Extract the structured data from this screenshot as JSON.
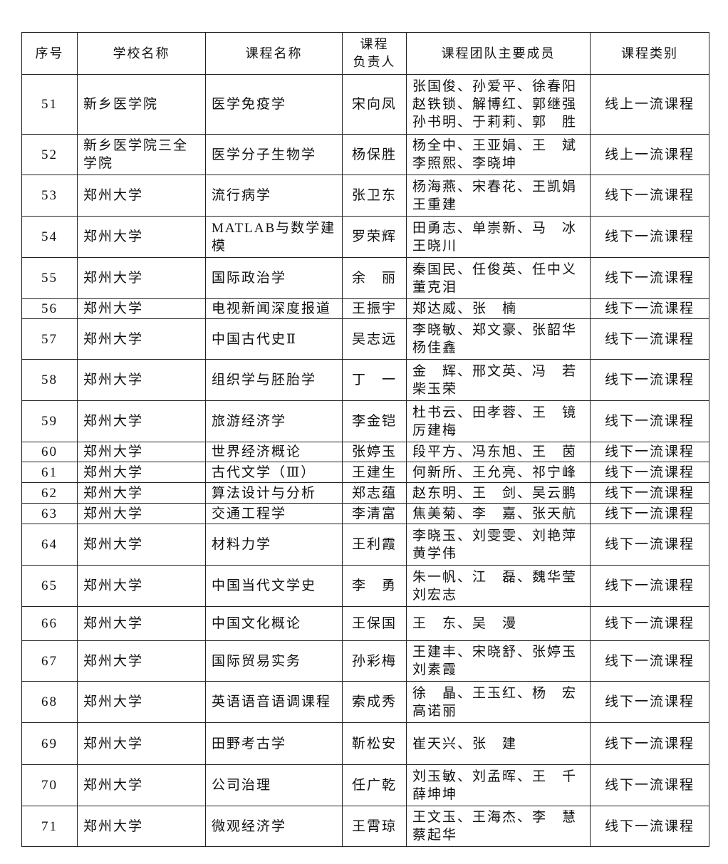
{
  "table": {
    "header": [
      "序号",
      "学校名称",
      "课程名称",
      [
        "课程",
        "负责人"
      ],
      "课程团队主要成员",
      "课程类别"
    ],
    "rows": [
      [
        "51",
        "新乡医学院",
        "医学免疫学",
        "宋向凤",
        [
          "张国俊、孙爱平、徐春阳",
          "赵铁锁、解博红、郭继强",
          "孙书明、于莉莉、郭　胜"
        ],
        "线上一流课程"
      ],
      [
        "52",
        "新乡医学院三全学院",
        "医学分子生物学",
        "杨保胜",
        [
          "杨全中、王亚娟、王　斌",
          "李照熙、李晓坤"
        ],
        "线上一流课程"
      ],
      [
        "53",
        "郑州大学",
        "流行病学",
        "张卫东",
        [
          "杨海燕、宋春花、王凯娟",
          "王重建"
        ],
        "线下一流课程"
      ],
      [
        "54",
        "郑州大学",
        "MATLAB与数学建模",
        "罗荣辉",
        [
          "田勇志、单崇新、马　冰",
          "王晓川"
        ],
        "线下一流课程"
      ],
      [
        "55",
        "郑州大学",
        "国际政治学",
        "余　丽",
        [
          "秦国民、任俊英、任中义",
          "董克泪"
        ],
        "线下一流课程"
      ],
      [
        "56",
        "郑州大学",
        "电视新闻深度报道",
        "王振宇",
        [
          "郑达威、张　楠"
        ],
        "线下一流课程"
      ],
      [
        "57",
        "郑州大学",
        "中国古代史Ⅱ",
        "吴志远",
        [
          "李晓敏、郑文豪、张韶华",
          "杨佳鑫"
        ],
        "线下一流课程"
      ],
      [
        "58",
        "郑州大学",
        "组织学与胚胎学",
        "丁　一",
        [
          "金　辉、邢文英、冯　若",
          "柴玉荣"
        ],
        "线下一流课程"
      ],
      [
        "59",
        "郑州大学",
        "旅游经济学",
        "李金铠",
        [
          "杜书云、田孝蓉、王　镜",
          "厉建梅"
        ],
        "线下一流课程"
      ],
      [
        "60",
        "郑州大学",
        "世界经济概论",
        "张婷玉",
        [
          "段平方、冯东旭、王　茵"
        ],
        "线下一流课程"
      ],
      [
        "61",
        "郑州大学",
        "古代文学（Ⅲ）",
        "王建生",
        [
          "何新所、王允亮、祁宁峰"
        ],
        "线下一流课程"
      ],
      [
        "62",
        "郑州大学",
        "算法设计与分析",
        "郑志蕴",
        [
          "赵东明、王　剑、吴云鹏"
        ],
        "线下一流课程"
      ],
      [
        "63",
        "郑州大学",
        "交通工程学",
        "李清富",
        [
          "焦美菊、李　嘉、张天航"
        ],
        "线下一流课程"
      ],
      [
        "64",
        "郑州大学",
        "材料力学",
        "王利霞",
        [
          "李晓玉、刘雯雯、刘艳萍",
          "黄学伟"
        ],
        "线下一流课程"
      ],
      [
        "65",
        "郑州大学",
        "中国当代文学史",
        "李　勇",
        [
          "朱一帆、江　磊、魏华莹",
          "刘宏志"
        ],
        "线下一流课程"
      ],
      [
        "66",
        "郑州大学",
        "中国文化概论",
        "王保国",
        [
          "王　东、吴　漫"
        ],
        "线下一流课程"
      ],
      [
        "67",
        "郑州大学",
        "国际贸易实务",
        "孙彩梅",
        [
          "王建丰、宋晓舒、张婷玉",
          "刘素霞"
        ],
        "线下一流课程"
      ],
      [
        "68",
        "郑州大学",
        "英语语音语调课程",
        "索成秀",
        [
          "徐　晶、王玉红、杨　宏",
          "高诺丽"
        ],
        "线下一流课程"
      ],
      [
        "69",
        "郑州大学",
        "田野考古学",
        "靳松安",
        [
          "崔天兴、张　建"
        ],
        "线下一流课程"
      ],
      [
        "70",
        "郑州大学",
        "公司治理",
        "任广乾",
        [
          "刘玉敏、刘孟晖、王　千",
          "薛坤坤"
        ],
        "线下一流课程"
      ],
      [
        "71",
        "郑州大学",
        "微观经济学",
        "王霄琼",
        [
          "王文玉、王海杰、李　慧",
          "蔡起华"
        ],
        "线下一流课程"
      ]
    ]
  }
}
